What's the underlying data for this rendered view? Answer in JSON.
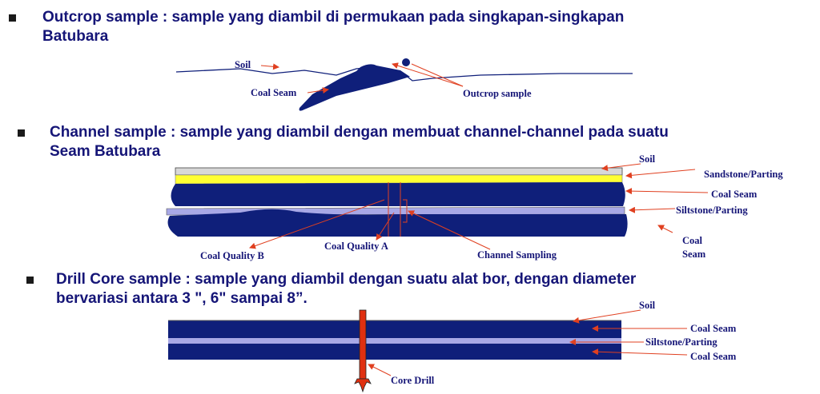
{
  "sections": [
    {
      "heading_line1": "Outcrop sample : sample yang diambil di permukaan pada singkapan-singkapan",
      "heading_line2": "Batubara",
      "labels": {
        "soil": "Soil",
        "coal_seam": "Coal Seam",
        "outcrop_sample": "Outcrop sample"
      }
    },
    {
      "heading_line1": "Channel sample : sample yang diambil dengan membuat channel-channel pada suatu",
      "heading_line2": "Seam Batubara",
      "labels": {
        "soil": "Soil",
        "sandstone_parting": "Sandstone/Parting",
        "coal_seam": "Coal Seam",
        "siltstone_parting": "Siltstone/Parting",
        "coal_seam_line1": "Coal",
        "coal_seam_line2": "Seam",
        "coal_quality_b": "Coal  Quality  B",
        "coal_quality_a": "Coal  Quality  A",
        "channel_sampling": "Channel Sampling"
      }
    },
    {
      "heading_line1": "Drill Core sample : sample yang diambil dengan suatu alat bor, dengan diameter",
      "heading_line2": "bervariasi antara 3  \", 6\" sampai 8”.",
      "labels": {
        "soil": "Soil",
        "coal_seam_upper": "Coal Seam",
        "siltstone_parting": "Siltstone/Parting",
        "coal_seam_lower": "Coal Seam",
        "core_drill": "Core Drill"
      }
    }
  ],
  "colors": {
    "heading": "#151577",
    "coal": "#0f1f7a",
    "sandstone": "#ffff33",
    "siltstone": "#a8a8e6",
    "soil_strip": "#d8d8d8",
    "arrow": "#e04020",
    "drill": "#e03010"
  }
}
